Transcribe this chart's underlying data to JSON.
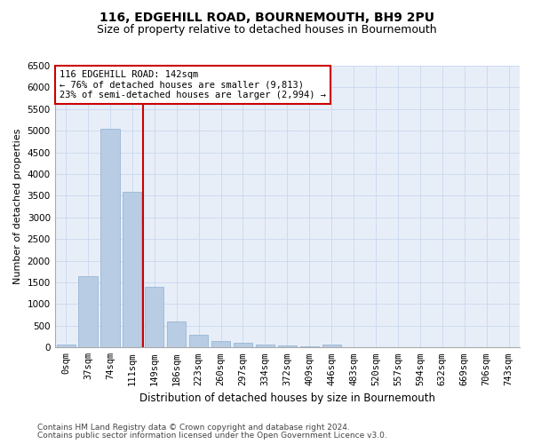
{
  "title": "116, EDGEHILL ROAD, BOURNEMOUTH, BH9 2PU",
  "subtitle": "Size of property relative to detached houses in Bournemouth",
  "xlabel": "Distribution of detached houses by size in Bournemouth",
  "ylabel": "Number of detached properties",
  "footer_line1": "Contains HM Land Registry data © Crown copyright and database right 2024.",
  "footer_line2": "Contains public sector information licensed under the Open Government Licence v3.0.",
  "bar_labels": [
    "0sqm",
    "37sqm",
    "74sqm",
    "111sqm",
    "149sqm",
    "186sqm",
    "223sqm",
    "260sqm",
    "297sqm",
    "334sqm",
    "372sqm",
    "409sqm",
    "446sqm",
    "483sqm",
    "520sqm",
    "557sqm",
    "594sqm",
    "632sqm",
    "669sqm",
    "706sqm",
    "743sqm"
  ],
  "bar_values": [
    75,
    1650,
    5050,
    3600,
    1400,
    610,
    290,
    155,
    110,
    75,
    50,
    25,
    75,
    0,
    0,
    0,
    0,
    0,
    0,
    0,
    0
  ],
  "bar_color": "#b8cce4",
  "bar_edge_color": "#8eb0d0",
  "grid_color": "#c8d8ee",
  "background_color": "#e8eef8",
  "property_label": "116 EDGEHILL ROAD: 142sqm",
  "annotation_line1": "← 76% of detached houses are smaller (9,813)",
  "annotation_line2": "23% of semi-detached houses are larger (2,994) →",
  "vline_color": "#cc0000",
  "annotation_box_color": "#cc0000",
  "ylim": [
    0,
    6500
  ],
  "yticks": [
    0,
    500,
    1000,
    1500,
    2000,
    2500,
    3000,
    3500,
    4000,
    4500,
    5000,
    5500,
    6000,
    6500
  ],
  "title_fontsize": 10,
  "subtitle_fontsize": 9,
  "xlabel_fontsize": 8.5,
  "ylabel_fontsize": 8,
  "tick_fontsize": 7.5,
  "footer_fontsize": 6.5,
  "annot_fontsize": 7.5
}
